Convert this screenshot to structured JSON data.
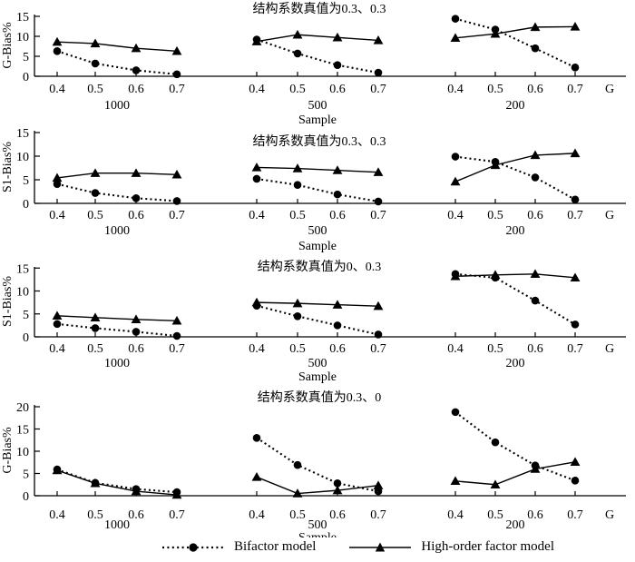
{
  "chart_data": {
    "type": "line",
    "x_values": [
      0.4,
      0.5,
      0.6,
      0.7
    ],
    "x_axis_label": "G",
    "sample_axis_label": "Sample",
    "sample_sizes": [
      "1000",
      "500",
      "200"
    ],
    "legend": [
      {
        "name": "Bifactor model",
        "marker": "circle",
        "line": "dotted"
      },
      {
        "name": "High-order factor model",
        "marker": "triangle",
        "line": "solid"
      }
    ],
    "legend_position": "bottom",
    "grid": false,
    "rows": [
      {
        "title": "结构系数真值为0.3、0.3",
        "ylabel": "G-Bias%",
        "ylim": [
          0,
          15
        ],
        "yticks": [
          0,
          5,
          10,
          15
        ],
        "panels": [
          {
            "sample": "1000",
            "bifactor": [
              6.3,
              3.2,
              1.5,
              0.5
            ],
            "high_order": [
              8.6,
              8.2,
              7.0,
              6.3
            ]
          },
          {
            "sample": "500",
            "bifactor": [
              9.2,
              5.7,
              2.8,
              0.9
            ],
            "high_order": [
              8.7,
              10.4,
              9.7,
              9.0
            ]
          },
          {
            "sample": "200",
            "bifactor": [
              14.4,
              11.7,
              7.0,
              2.2
            ],
            "high_order": [
              9.6,
              10.6,
              12.3,
              12.4
            ]
          }
        ]
      },
      {
        "title": "结构系数真值为0.3、0.3",
        "ylabel": "S1-Bias%",
        "ylim": [
          0,
          15
        ],
        "yticks": [
          0,
          5,
          10,
          15
        ],
        "panels": [
          {
            "sample": "1000",
            "bifactor": [
              4.1,
              2.2,
              1.1,
              0.5
            ],
            "high_order": [
              5.4,
              6.4,
              6.4,
              6.1
            ]
          },
          {
            "sample": "500",
            "bifactor": [
              5.2,
              3.9,
              1.9,
              0.4
            ],
            "high_order": [
              7.6,
              7.4,
              7.0,
              6.6
            ]
          },
          {
            "sample": "200",
            "bifactor": [
              9.9,
              8.8,
              5.5,
              0.8
            ],
            "high_order": [
              4.6,
              8.1,
              10.2,
              10.6
            ]
          }
        ]
      },
      {
        "title": "结构系数真值为0、0.3",
        "ylabel": "S1-Bias%",
        "ylim": [
          0,
          15
        ],
        "yticks": [
          0,
          5,
          10,
          15
        ],
        "panels": [
          {
            "sample": "1000",
            "bifactor": [
              2.8,
              1.9,
              1.1,
              0.2
            ],
            "high_order": [
              4.6,
              4.2,
              3.8,
              3.5
            ]
          },
          {
            "sample": "500",
            "bifactor": [
              6.8,
              4.5,
              2.5,
              0.5
            ],
            "high_order": [
              7.5,
              7.3,
              7.0,
              6.7
            ]
          },
          {
            "sample": "200",
            "bifactor": [
              13.7,
              12.9,
              7.9,
              2.7
            ],
            "high_order": [
              13.2,
              13.5,
              13.7,
              12.9
            ]
          }
        ]
      },
      {
        "title": "结构系数真值为0.3、0",
        "ylabel": "G-Bias%",
        "ylim": [
          0,
          20
        ],
        "yticks": [
          0,
          5,
          10,
          15,
          20
        ],
        "panels": [
          {
            "sample": "1000",
            "bifactor": [
              5.9,
              2.9,
              1.5,
              0.8
            ],
            "high_order": [
              5.7,
              2.8,
              1.0,
              0.2
            ]
          },
          {
            "sample": "500",
            "bifactor": [
              13.0,
              6.9,
              2.8,
              1.0
            ],
            "high_order": [
              4.2,
              0.5,
              1.2,
              2.3
            ]
          },
          {
            "sample": "200",
            "bifactor": [
              18.8,
              12.0,
              6.8,
              3.4
            ],
            "high_order": [
              3.3,
              2.5,
              6.0,
              7.6
            ]
          }
        ]
      }
    ]
  },
  "colors": {
    "line": "#000000",
    "background": "#ffffff"
  }
}
